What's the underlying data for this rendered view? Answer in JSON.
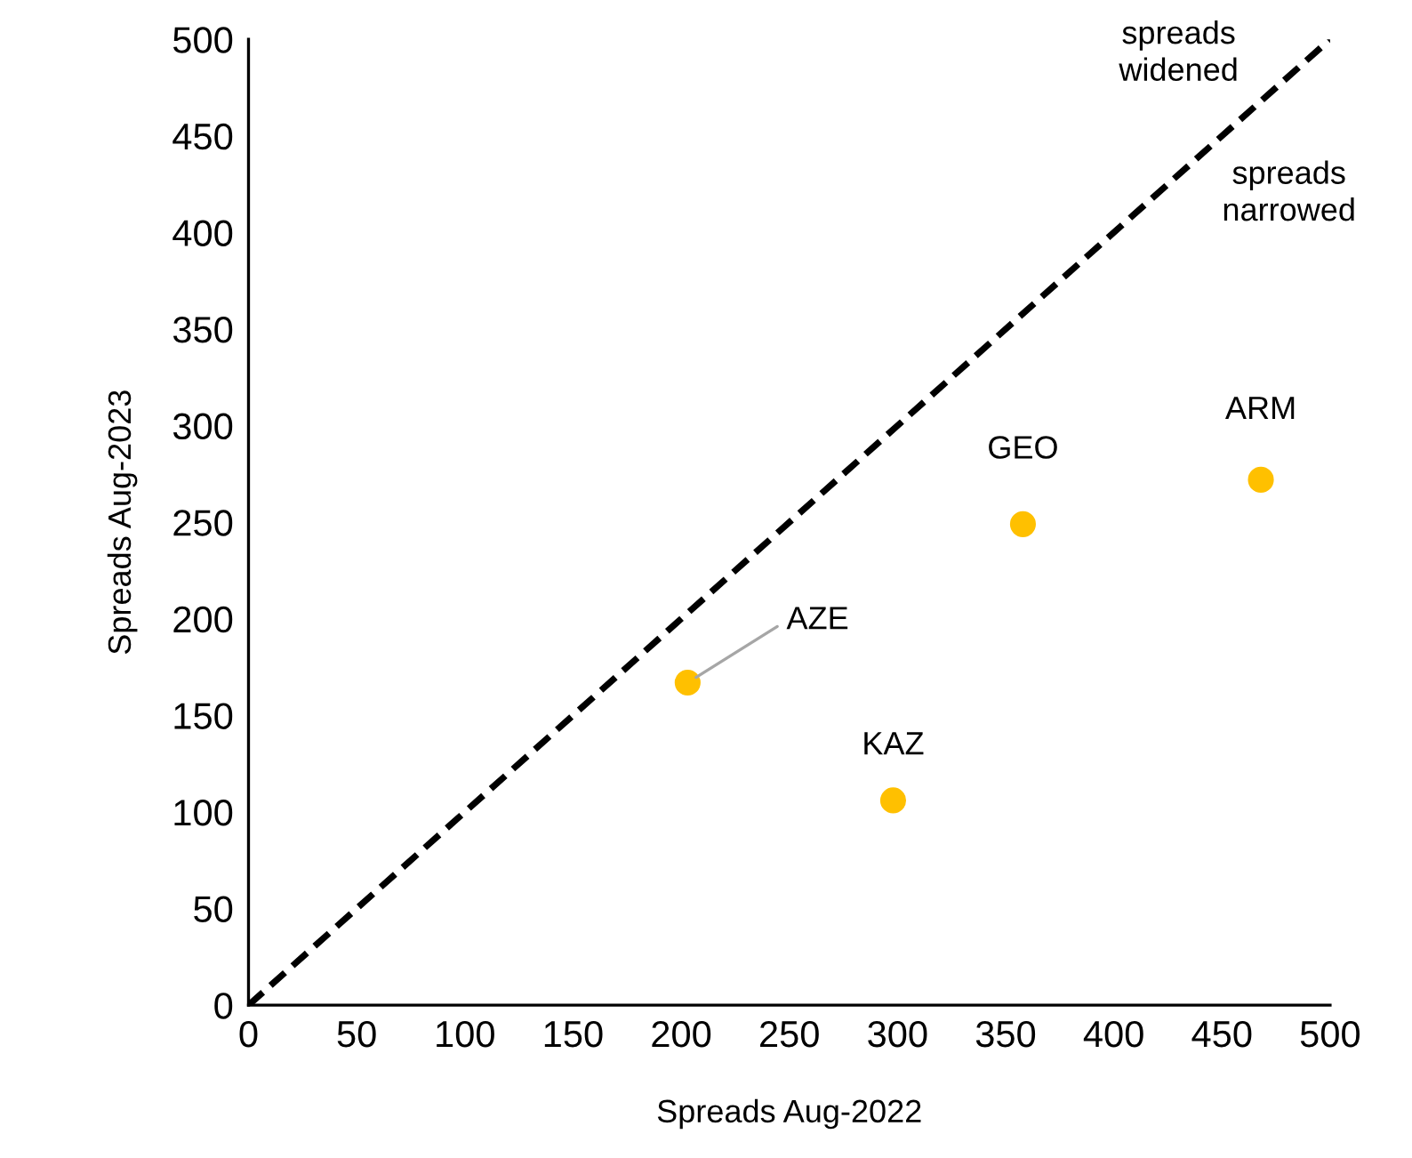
{
  "chart_data": {
    "type": "scatter",
    "xlabel": "Spreads Aug-2022",
    "ylabel": "Spreads Aug-2023",
    "series": [
      {
        "marker": "circle",
        "color": "#ffc000",
        "x": [
          203,
          298,
          358,
          468
        ],
        "values": [
          167,
          106,
          249,
          272
        ]
      },
      {
        "type": "line",
        "color": "#000000",
        "line_style": "dashed",
        "marker": "none",
        "x": [
          0,
          500
        ],
        "values": [
          0,
          500
        ]
      }
    ],
    "annotations": [
      {
        "text": "AZE",
        "x": 203,
        "y": 167
      },
      {
        "text": "KAZ",
        "x": 298,
        "y": 106
      },
      {
        "text": "GEO",
        "x": 358,
        "y": 249
      },
      {
        "text": "ARM",
        "x": 468,
        "y": 272
      },
      "spreads\nwidened",
      "spreads\nnarrowed"
    ],
    "xlim": [
      0,
      500
    ],
    "ylim": [
      0,
      500
    ],
    "xticks": [
      0,
      50,
      100,
      150,
      200,
      250,
      300,
      350,
      400,
      450,
      500
    ],
    "yticks": [
      0,
      50,
      100,
      150,
      200,
      250,
      300,
      350,
      400,
      450,
      500
    ],
    "grid": false,
    "legend": false
  }
}
